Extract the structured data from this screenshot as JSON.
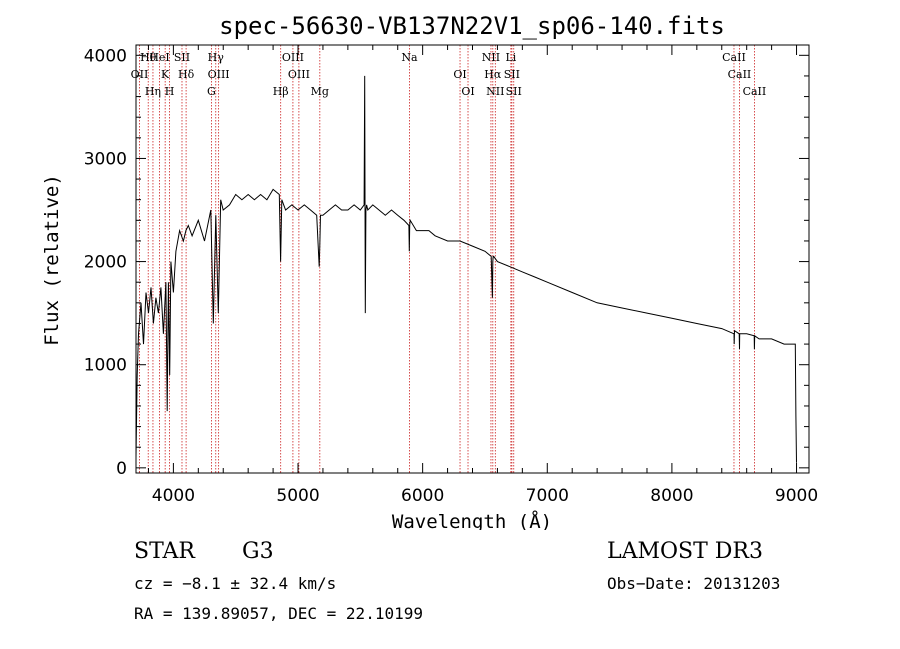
{
  "chart_data": {
    "type": "line",
    "title": "spec-56630-VB137N22V1_sp06-140.fits",
    "xlabel": "Wavelength (Å)",
    "ylabel": "Flux (relative)",
    "xlim": [
      3700,
      9100
    ],
    "ylim": [
      -50,
      4100
    ],
    "xticks": [
      4000,
      5000,
      6000,
      7000,
      8000,
      9000
    ],
    "yticks": [
      0,
      1000,
      2000,
      3000,
      4000
    ],
    "series": [
      {
        "name": "spectrum",
        "x": [
          3700,
          3710,
          3720,
          3740,
          3760,
          3780,
          3800,
          3820,
          3840,
          3860,
          3880,
          3900,
          3920,
          3940,
          3950,
          3960,
          3970,
          3980,
          4000,
          4020,
          4050,
          4080,
          4100,
          4120,
          4150,
          4200,
          4250,
          4300,
          4320,
          4340,
          4360,
          4380,
          4400,
          4450,
          4500,
          4550,
          4600,
          4650,
          4700,
          4750,
          4800,
          4850,
          4860,
          4870,
          4900,
          4950,
          5000,
          5050,
          5100,
          5150,
          5170,
          5175,
          5180,
          5200,
          5250,
          5300,
          5350,
          5400,
          5450,
          5500,
          5530,
          5535,
          5540,
          5545,
          5550,
          5560,
          5600,
          5650,
          5700,
          5750,
          5800,
          5850,
          5890,
          5893,
          5896,
          5900,
          5950,
          6000,
          6050,
          6100,
          6200,
          6300,
          6400,
          6500,
          6550,
          6560,
          6563,
          6566,
          6570,
          6600,
          6700,
          6800,
          6900,
          7000,
          7200,
          7400,
          7600,
          7800,
          8000,
          8200,
          8400,
          8498,
          8500,
          8502,
          8540,
          8542,
          8544,
          8600,
          8660,
          8662,
          8664,
          8700,
          8800,
          8900,
          8950,
          8990,
          8995,
          9000
        ],
        "y": [
          100,
          900,
          1300,
          1600,
          1200,
          1700,
          1500,
          1750,
          1400,
          1650,
          1500,
          1750,
          1300,
          1800,
          550,
          1800,
          900,
          2000,
          1700,
          2100,
          2300,
          2200,
          2300,
          2350,
          2250,
          2400,
          2200,
          2500,
          1400,
          2450,
          1500,
          2600,
          2500,
          2550,
          2650,
          2600,
          2650,
          2600,
          2650,
          2600,
          2700,
          2650,
          2000,
          2600,
          2500,
          2550,
          2500,
          2550,
          2500,
          2450,
          1950,
          2150,
          2450,
          2450,
          2500,
          2550,
          2500,
          2500,
          2550,
          2500,
          2550,
          3800,
          1500,
          2500,
          2550,
          2500,
          2550,
          2500,
          2450,
          2500,
          2450,
          2400,
          2350,
          2100,
          2350,
          2400,
          2300,
          2300,
          2300,
          2250,
          2200,
          2200,
          2150,
          2100,
          2050,
          1650,
          2000,
          2050,
          2050,
          2000,
          1950,
          1900,
          1850,
          1800,
          1700,
          1600,
          1550,
          1500,
          1450,
          1400,
          1350,
          1300,
          1200,
          1330,
          1300,
          1150,
          1300,
          1300,
          1280,
          1150,
          1280,
          1250,
          1250,
          1200,
          1200,
          1200,
          500,
          50
        ]
      }
    ],
    "lines": [
      {
        "label": "Hθ",
        "wave": 3798
      },
      {
        "label": "OII",
        "wave": 3728
      },
      {
        "label": "Hη",
        "wave": 3836
      },
      {
        "label": "HeI",
        "wave": 3889
      },
      {
        "label": "K",
        "wave": 3934
      },
      {
        "label": "H",
        "wave": 3969
      },
      {
        "label": "SII",
        "wave": 4069
      },
      {
        "label": "Hδ",
        "wave": 4102
      },
      {
        "label": "G",
        "wave": 4305
      },
      {
        "label": "Hγ",
        "wave": 4340
      },
      {
        "label": "OIII",
        "wave": 4363
      },
      {
        "label": "Hβ",
        "wave": 4861
      },
      {
        "label": "OIII",
        "wave": 4959
      },
      {
        "label": "OIII",
        "wave": 5007
      },
      {
        "label": "Mg",
        "wave": 5175
      },
      {
        "label": "Na",
        "wave": 5894
      },
      {
        "label": "OI",
        "wave": 6300
      },
      {
        "label": "OI",
        "wave": 6364
      },
      {
        "label": "NII",
        "wave": 6548
      },
      {
        "label": "Hα",
        "wave": 6563
      },
      {
        "label": "NII",
        "wave": 6583
      },
      {
        "label": "Li",
        "wave": 6708
      },
      {
        "label": "SII",
        "wave": 6716
      },
      {
        "label": "SII",
        "wave": 6731
      },
      {
        "label": "CaII",
        "wave": 8498
      },
      {
        "label": "CaII",
        "wave": 8542
      },
      {
        "label": "CaII",
        "wave": 8662
      }
    ]
  },
  "info": {
    "object_class": "STAR",
    "subclass": "G3",
    "survey": "LAMOST DR3",
    "redshift": "cz = −8.1 ± 32.4 km/s",
    "obs_date": "Obs−Date: 20131203",
    "coords": "RA = 139.89057, DEC =  22.10199"
  },
  "colors": {
    "spectrum": "#000000",
    "line_marker": "#cc2222",
    "axis": "#000000"
  }
}
